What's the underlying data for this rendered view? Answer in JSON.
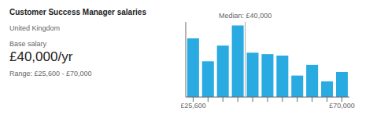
{
  "chart_data": {
    "type": "bar",
    "title": "Customer Success Manager salaries",
    "subtitle": "United Kingdom",
    "annotations": [
      {
        "text": "Base salary"
      },
      {
        "text": "£40,000/yr"
      },
      {
        "text": "Range: £25,600 - £70,000"
      },
      {
        "text": "Median: £40,000",
        "x": 3
      }
    ],
    "categories": [
      "£25,600",
      null,
      null,
      null,
      null,
      null,
      null,
      null,
      null,
      null,
      "£70,000"
    ],
    "values": [
      0.82,
      0.5,
      0.72,
      1.0,
      0.62,
      0.6,
      0.58,
      0.3,
      0.45,
      0.22,
      0.35
    ],
    "color": "#29ABE2",
    "ylim": [
      0,
      1.05
    ],
    "tick_labels": "x",
    "grid": false
  }
}
